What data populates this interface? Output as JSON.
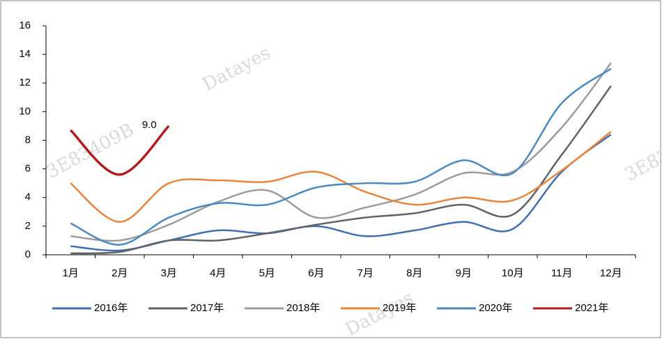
{
  "chart_data": {
    "type": "line",
    "categories": [
      "1月",
      "2月",
      "3月",
      "4月",
      "5月",
      "6月",
      "7月",
      "8月",
      "9月",
      "10月",
      "11月",
      "12月"
    ],
    "series": [
      {
        "name": "2016年",
        "color": "#3f6fb0",
        "values": [
          0.6,
          0.3,
          1.0,
          1.7,
          1.5,
          2.0,
          1.3,
          1.7,
          2.3,
          1.8,
          5.8,
          8.4
        ]
      },
      {
        "name": "2017年",
        "color": "#5f6368",
        "values": [
          0.1,
          0.2,
          1.0,
          1.0,
          1.5,
          2.1,
          2.6,
          2.9,
          3.5,
          2.8,
          7.0,
          11.8
        ]
      },
      {
        "name": "2018年",
        "color": "#9c9c9c",
        "values": [
          1.3,
          1.0,
          2.1,
          3.7,
          4.5,
          2.6,
          3.3,
          4.2,
          5.7,
          5.8,
          8.9,
          13.4
        ]
      },
      {
        "name": "2019年",
        "color": "#e8843c",
        "values": [
          5.0,
          2.3,
          5.0,
          5.2,
          5.1,
          5.8,
          4.4,
          3.5,
          4.0,
          3.8,
          5.9,
          8.6
        ]
      },
      {
        "name": "2020年",
        "color": "#4a8ac0",
        "values": [
          2.2,
          0.7,
          2.6,
          3.6,
          3.5,
          4.7,
          5.0,
          5.1,
          6.6,
          5.7,
          10.6,
          13.0
        ]
      },
      {
        "name": "2021年",
        "color": "#b01c1c",
        "values": [
          8.7,
          5.6,
          9.0,
          null,
          null,
          null,
          null,
          null,
          null,
          null,
          null,
          null
        ],
        "value_labels": [
          null,
          null,
          "9.0",
          null,
          null,
          null,
          null,
          null,
          null,
          null,
          null,
          null
        ]
      }
    ],
    "ylim": [
      0,
      16
    ],
    "yticks": [
      0,
      2,
      4,
      6,
      8,
      10,
      12,
      14,
      16
    ],
    "legend": "bottom",
    "smooth": true,
    "watermarks": [
      "Datayes",
      "3E83409B",
      "Datayes"
    ]
  }
}
